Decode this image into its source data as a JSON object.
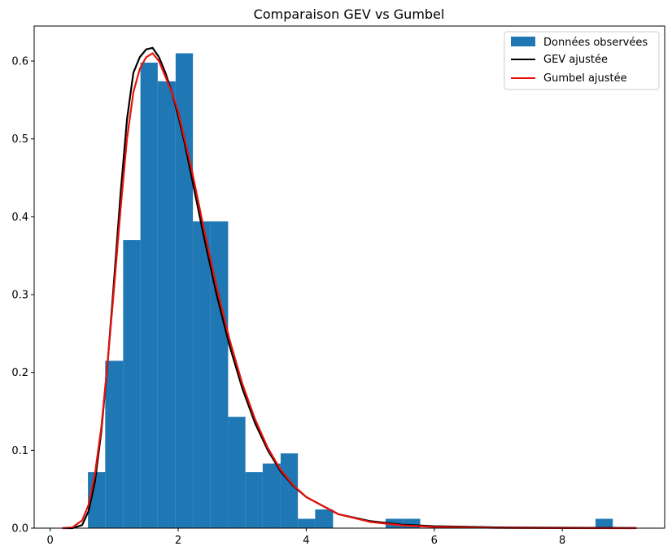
{
  "chart_data": {
    "type": "histogram+line",
    "title": "Comparaison GEV vs Gumbel",
    "xlabel": "",
    "ylabel": "",
    "xlim": [
      -0.25,
      9.6
    ],
    "ylim": [
      0,
      0.645
    ],
    "xticks": [
      0,
      2,
      4,
      6,
      8
    ],
    "yticks": [
      0.0,
      0.1,
      0.2,
      0.3,
      0.4,
      0.5,
      0.6
    ],
    "grid": false,
    "legend_position": "top-right",
    "legend": [
      {
        "label": "Données observées",
        "kind": "patch",
        "color": "#1f77b4"
      },
      {
        "label": "GEV ajustée",
        "kind": "line",
        "color": "#000000"
      },
      {
        "label": "Gumbel ajustée",
        "kind": "line",
        "color": "#e8120c"
      }
    ],
    "histogram": {
      "name": "Données observées",
      "color": "#1f77b4",
      "bins": [
        {
          "x0": 0.59,
          "x1": 0.86,
          "value": 0.072
        },
        {
          "x0": 0.86,
          "x1": 1.14,
          "value": 0.215
        },
        {
          "x0": 1.14,
          "x1": 1.41,
          "value": 0.37
        },
        {
          "x0": 1.41,
          "x1": 1.68,
          "value": 0.598
        },
        {
          "x0": 1.68,
          "x1": 1.96,
          "value": 0.574
        },
        {
          "x0": 1.96,
          "x1": 2.23,
          "value": 0.61
        },
        {
          "x0": 2.23,
          "x1": 2.5,
          "value": 0.394
        },
        {
          "x0": 2.5,
          "x1": 2.78,
          "value": 0.394
        },
        {
          "x0": 2.78,
          "x1": 3.05,
          "value": 0.143
        },
        {
          "x0": 3.05,
          "x1": 3.32,
          "value": 0.072
        },
        {
          "x0": 3.32,
          "x1": 3.6,
          "value": 0.083
        },
        {
          "x0": 3.6,
          "x1": 3.87,
          "value": 0.096
        },
        {
          "x0": 3.87,
          "x1": 4.14,
          "value": 0.012
        },
        {
          "x0": 4.14,
          "x1": 4.42,
          "value": 0.024
        },
        {
          "x0": 5.24,
          "x1": 5.51,
          "value": 0.012
        },
        {
          "x0": 5.51,
          "x1": 5.78,
          "value": 0.012
        },
        {
          "x0": 8.52,
          "x1": 8.79,
          "value": 0.012
        }
      ]
    },
    "series": [
      {
        "name": "GEV ajustée",
        "color": "#000000",
        "x": [
          0.2,
          0.35,
          0.5,
          0.6,
          0.7,
          0.8,
          0.9,
          1.0,
          1.1,
          1.2,
          1.3,
          1.4,
          1.5,
          1.6,
          1.7,
          1.8,
          1.9,
          2.0,
          2.1,
          2.2,
          2.4,
          2.6,
          2.8,
          3.0,
          3.2,
          3.4,
          3.6,
          3.8,
          4.0,
          4.5,
          5.0,
          5.5,
          6.0,
          7.0,
          8.0,
          9.15
        ],
        "y": [
          0.0,
          0.0,
          0.004,
          0.022,
          0.06,
          0.125,
          0.215,
          0.32,
          0.43,
          0.525,
          0.585,
          0.605,
          0.615,
          0.617,
          0.605,
          0.585,
          0.56,
          0.53,
          0.495,
          0.455,
          0.375,
          0.3,
          0.235,
          0.18,
          0.135,
          0.1,
          0.073,
          0.054,
          0.04,
          0.018,
          0.009,
          0.0045,
          0.0025,
          0.001,
          0.0005,
          0.0002
        ]
      },
      {
        "name": "Gumbel ajustée",
        "color": "#e8120c",
        "x": [
          0.2,
          0.35,
          0.5,
          0.6,
          0.7,
          0.8,
          0.9,
          1.0,
          1.1,
          1.2,
          1.3,
          1.4,
          1.5,
          1.6,
          1.7,
          1.8,
          1.9,
          2.0,
          2.1,
          2.2,
          2.4,
          2.6,
          2.8,
          3.0,
          3.2,
          3.4,
          3.6,
          3.8,
          4.0,
          4.5,
          5.0,
          5.5,
          6.0,
          7.0,
          8.0,
          9.15
        ],
        "y": [
          0.0,
          0.001,
          0.01,
          0.03,
          0.07,
          0.13,
          0.215,
          0.31,
          0.41,
          0.5,
          0.56,
          0.59,
          0.605,
          0.61,
          0.6,
          0.58,
          0.56,
          0.535,
          0.5,
          0.465,
          0.385,
          0.31,
          0.243,
          0.186,
          0.14,
          0.103,
          0.075,
          0.055,
          0.04,
          0.018,
          0.008,
          0.0035,
          0.0016,
          0.0003,
          0.0001,
          0.0
        ]
      }
    ]
  }
}
